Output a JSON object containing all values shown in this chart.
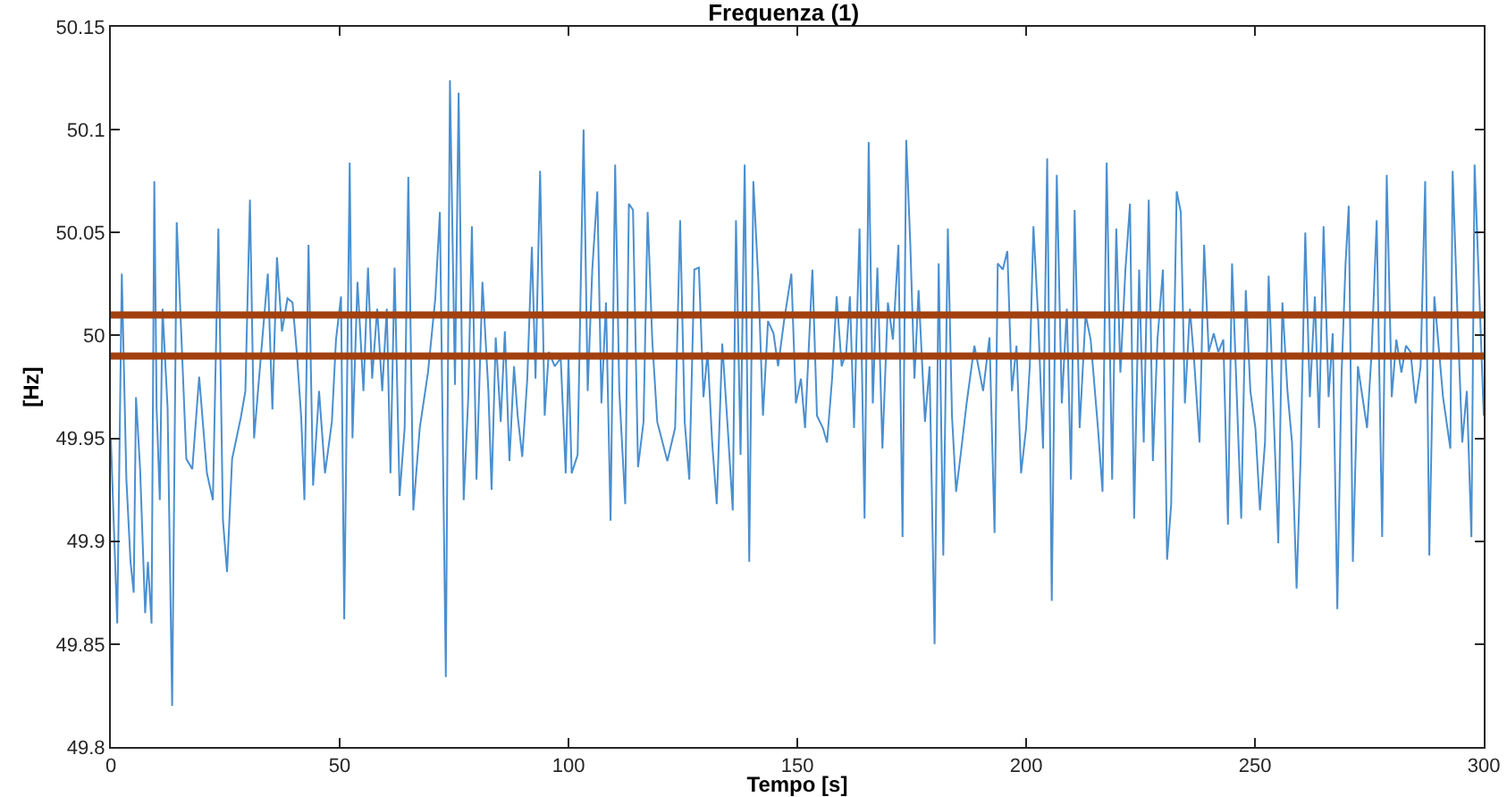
{
  "chart_data": {
    "type": "line",
    "title": "Frequenza (1)",
    "xlabel": "Tempo [s]",
    "ylabel": "[Hz]",
    "xlim": [
      0,
      300
    ],
    "xticks": [
      0,
      50,
      100,
      150,
      200,
      250,
      300
    ],
    "ylim": [
      49.8,
      50.15
    ],
    "yticks": [
      49.8,
      49.85,
      49.9,
      49.95,
      50,
      50.05,
      50.1,
      50.15
    ],
    "grid": false,
    "marker": "none",
    "line_style": "solid",
    "ref_lines": [
      {
        "axis": "y",
        "value": 50.01,
        "color": "#a2400f"
      },
      {
        "axis": "y",
        "value": 49.99,
        "color": "#a2400f"
      }
    ],
    "series": [
      {
        "color": "#4a8fd0",
        "x": [
          0,
          1.4,
          2.4,
          3.4,
          4.3,
          5,
          5.5,
          6.4,
          7.5,
          8.1,
          8.9,
          9.5,
          10,
          10.7,
          11.3,
          12.4,
          13.4,
          14.4,
          15.5,
          16.5,
          17.8,
          19.3,
          21,
          22.3,
          23.5,
          24.5,
          25.4,
          26.5,
          28.4,
          29.4,
          30.4,
          31.3,
          32.6,
          34.3,
          35.3,
          36.3,
          37.4,
          38.6,
          39.7,
          40.7,
          41.6,
          42.3,
          43.2,
          44.2,
          45.5,
          46.8,
          48.3,
          49.2,
          50.3,
          51,
          52.2,
          52.8,
          53.9,
          55.2,
          56.2,
          57.1,
          58.2,
          59.3,
          60.3,
          61.1,
          62,
          63.1,
          64.2,
          65,
          66.1,
          67.5,
          69.3,
          70.9,
          71.9,
          73.2,
          74.1,
          75.2,
          76,
          77.1,
          78.1,
          78.9,
          79.9,
          81.2,
          82.5,
          83.2,
          84.1,
          85.2,
          86.1,
          87.1,
          88.1,
          88.9,
          89.9,
          91,
          92,
          92.8,
          93.8,
          94.8,
          95.7,
          97,
          98.3,
          99.4,
          100,
          100.7,
          102,
          103.3,
          104.2,
          105.2,
          106.3,
          107.2,
          108.2,
          109.2,
          110.2,
          111.1,
          112.4,
          113.2,
          114.1,
          115.2,
          116.4,
          117.3,
          118.3,
          119.4,
          121.6,
          123.3,
          124.4,
          125.4,
          126.4,
          127.5,
          128.5,
          129.5,
          130.4,
          131.4,
          132.4,
          133.6,
          134.8,
          135.9,
          136.6,
          137.6,
          138.5,
          139.5,
          140.4,
          141.5,
          142.5,
          143.6,
          144.8,
          145.8,
          147.1,
          148.7,
          149.7,
          150.8,
          151.7,
          153.3,
          154.3,
          155.6,
          156.5,
          157.6,
          158.6,
          159.7,
          160.7,
          161.5,
          162.4,
          163.6,
          164.7,
          165.6,
          166.5,
          167.5,
          168.6,
          169.8,
          170.9,
          172.1,
          173,
          173.8,
          174.7,
          175.6,
          176.5,
          177.9,
          178.9,
          180,
          180.9,
          181.9,
          182.9,
          183.8,
          184.7,
          185.7,
          187,
          188.7,
          190.6,
          192,
          193.1,
          193.8,
          194.9,
          195.9,
          196.9,
          197.9,
          198.9,
          200,
          200.8,
          201.6,
          202.6,
          203.7,
          204.6,
          205.6,
          206.7,
          207.8,
          208.9,
          209.8,
          210.6,
          211.7,
          213,
          214.1,
          215.7,
          216.7,
          217.6,
          218.8,
          219.7,
          220.6,
          221.7,
          222.7,
          223.6,
          224.7,
          225.7,
          226.8,
          227.7,
          228.7,
          229.9,
          230.8,
          231.7,
          232.9,
          233.8,
          234.7,
          235.8,
          236.8,
          237.9,
          238.9,
          239.9,
          241,
          242,
          243.1,
          244.1,
          245,
          245.9,
          247,
          248,
          249,
          250.1,
          251.1,
          252.2,
          253,
          254.2,
          255.1,
          256,
          257.1,
          258.1,
          259.1,
          260,
          261,
          262,
          263.1,
          264,
          265,
          266.1,
          267,
          268,
          268.9,
          269.8,
          270.5,
          271.4,
          272.5,
          273.5,
          274.5,
          275.5,
          276.6,
          277.8,
          278.8,
          279.9,
          280.9,
          282,
          283,
          284,
          285.1,
          286.2,
          287.2,
          288.1,
          289.2,
          291.1,
          292.7,
          293.2,
          294.4,
          295.3,
          296.3,
          297.3,
          298,
          299,
          300
        ],
        "values": [
          49.95,
          49.86,
          50.03,
          49.93,
          49.89,
          49.875,
          49.97,
          49.935,
          49.865,
          49.89,
          49.86,
          50.075,
          49.965,
          49.92,
          50.013,
          49.965,
          49.82,
          50.055,
          49.995,
          49.94,
          49.935,
          49.98,
          49.933,
          49.92,
          50.052,
          49.91,
          49.885,
          49.94,
          49.96,
          49.973,
          50.066,
          49.95,
          49.985,
          50.03,
          49.964,
          50.038,
          50.002,
          50.018,
          50.016,
          49.99,
          49.96,
          49.92,
          50.044,
          49.927,
          49.973,
          49.933,
          49.958,
          49.998,
          50.019,
          49.862,
          50.084,
          49.95,
          50.026,
          49.973,
          50.033,
          49.979,
          50.013,
          49.973,
          50.013,
          49.933,
          50.033,
          49.922,
          49.955,
          50.077,
          49.915,
          49.955,
          49.982,
          50.018,
          50.06,
          49.834,
          50.124,
          49.976,
          50.118,
          49.92,
          49.97,
          50.053,
          49.93,
          50.026,
          49.973,
          49.925,
          49.999,
          49.958,
          50.002,
          49.939,
          49.985,
          49.961,
          49.941,
          49.979,
          50.043,
          49.979,
          50.08,
          49.961,
          49.992,
          49.985,
          49.989,
          49.933,
          49.989,
          49.933,
          49.942,
          50.1,
          49.973,
          50.032,
          50.07,
          49.967,
          50.016,
          49.91,
          50.083,
          49.973,
          49.918,
          50.064,
          50.061,
          49.936,
          49.958,
          50.06,
          49.998,
          49.958,
          49.939,
          49.955,
          50.056,
          49.958,
          49.93,
          50.032,
          50.033,
          49.97,
          49.992,
          49.948,
          49.918,
          49.996,
          49.955,
          49.915,
          50.056,
          49.942,
          50.083,
          49.89,
          50.075,
          50.026,
          49.961,
          50.007,
          50.001,
          49.985,
          50.007,
          50.03,
          49.967,
          49.979,
          49.955,
          50.032,
          49.961,
          49.955,
          49.948,
          49.979,
          50.019,
          49.985,
          49.992,
          50.019,
          49.955,
          50.052,
          49.911,
          50.094,
          49.967,
          50.033,
          49.945,
          50.016,
          49.998,
          50.044,
          49.902,
          50.095,
          50.044,
          49.979,
          50.022,
          49.958,
          49.985,
          49.85,
          50.035,
          49.893,
          50.052,
          49.961,
          49.924,
          49.942,
          49.967,
          49.995,
          49.973,
          49.999,
          49.904,
          50.035,
          50.032,
          50.041,
          49.973,
          49.995,
          49.933,
          49.955,
          49.985,
          50.053,
          50.01,
          49.945,
          50.086,
          49.871,
          50.078,
          49.967,
          50.013,
          49.93,
          50.061,
          49.955,
          50.01,
          49.998,
          49.955,
          49.924,
          50.084,
          49.93,
          50.052,
          49.982,
          50.032,
          50.064,
          49.911,
          50.032,
          49.948,
          50.066,
          49.939,
          49.998,
          50.032,
          49.891,
          49.918,
          50.07,
          50.06,
          49.967,
          50.013,
          49.985,
          49.948,
          50.044,
          49.992,
          50.001,
          49.992,
          49.998,
          49.908,
          50.035,
          49.979,
          49.911,
          50.022,
          49.973,
          49.955,
          49.915,
          49.948,
          50.029,
          49.955,
          49.899,
          50.016,
          49.973,
          49.948,
          49.877,
          49.942,
          50.05,
          49.97,
          50.019,
          49.955,
          50.053,
          49.97,
          50.001,
          49.867,
          49.979,
          50.035,
          50.063,
          49.89,
          49.985,
          49.97,
          49.955,
          49.992,
          50.056,
          49.902,
          50.078,
          49.97,
          49.998,
          49.982,
          49.995,
          49.992,
          49.967,
          49.985,
          50.075,
          49.893,
          50.019,
          49.97,
          49.945,
          50.08,
          50.001,
          49.948,
          49.973,
          49.902,
          50.083,
          50.022,
          49.961
        ]
      }
    ]
  }
}
